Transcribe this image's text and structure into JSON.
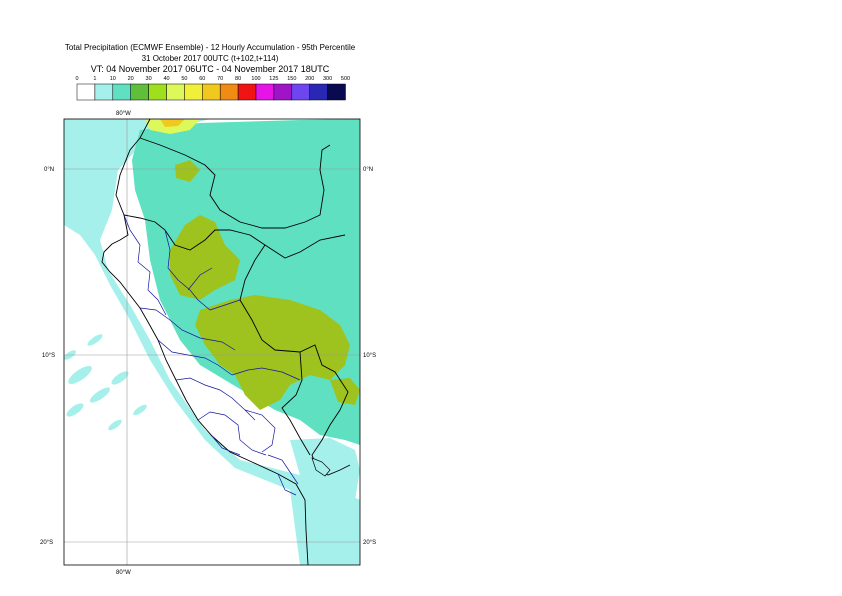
{
  "title": {
    "line1": "Total Precipitation (ECMWF Ensemble) - 12 Hourly Accumulation - 95th Percentile",
    "line2": "31 October 2017 00UTC (t+102,t+114)",
    "line3": "VT: 04 November 2017 06UTC - 04 November 2017 18UTC"
  },
  "legend": {
    "ticks": [
      "0",
      "1",
      "10",
      "20",
      "30",
      "40",
      "50",
      "60",
      "70",
      "80",
      "100",
      "125",
      "150",
      "200",
      "300",
      "500"
    ],
    "colors": [
      "#ffffff",
      "#a6f0ec",
      "#5fe0c0",
      "#5fbe3a",
      "#9ee01e",
      "#dcf85a",
      "#f0f03a",
      "#f0c81e",
      "#f08c14",
      "#f01414",
      "#e614e6",
      "#a014c8",
      "#6e46f0",
      "#2828b4",
      "#0a0a50"
    ]
  },
  "map": {
    "lat_labels": [
      "0°N",
      "10°S",
      "20°S"
    ],
    "lon_label": "80°W",
    "colors": {
      "ocean_light": "#a6f0ec",
      "land_green": "#5fe0c0",
      "heavy": "#9ec31e",
      "yellow": "#dcf85a",
      "orange": "#f0c81e",
      "coast": "#000000",
      "regions": "#0000b4"
    }
  }
}
